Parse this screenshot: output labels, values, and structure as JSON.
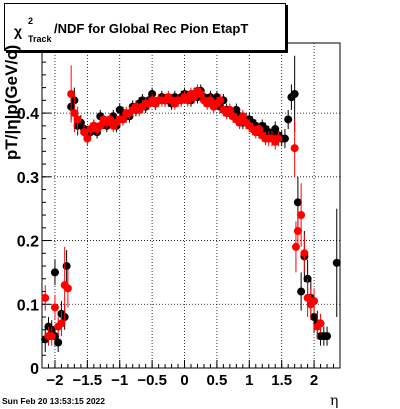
{
  "chart_data": {
    "type": "scatter",
    "title": {
      "prefix": "χ",
      "sup": "2",
      "sub": "Track",
      "rest": "/NDF for Global Rec Pion EtapT"
    },
    "xlabel": "η",
    "ylabel": "pT/|η|p(GeV/c)",
    "xlim": [
      -2.2,
      2.4
    ],
    "ylim": [
      0,
      0.51
    ],
    "xticks": [
      -2,
      -1.5,
      -1,
      -0.5,
      0,
      0.5,
      1,
      1.5,
      2
    ],
    "xtick_labels": [
      "−2",
      "−1.5",
      "−1",
      "−0.5",
      "0",
      "0.5",
      "1",
      "1.5",
      "2"
    ],
    "yticks": [
      0,
      0.1,
      0.2,
      0.3,
      0.4
    ],
    "ytick_labels": [
      "0",
      "0.1",
      "0.2",
      "0.3",
      "0.4"
    ],
    "grid": true,
    "series": [
      {
        "color": "#000000",
        "points": [
          [
            -2.15,
            0.045,
            0.02
          ],
          [
            -2.1,
            0.065,
            0.015
          ],
          [
            -2.05,
            0.06,
            0.015
          ],
          [
            -2.0,
            0.15,
            0.02
          ],
          [
            -2.0,
            0.05,
            0.015
          ],
          [
            -1.95,
            0.04,
            0.015
          ],
          [
            -1.9,
            0.085,
            0.02
          ],
          [
            -1.85,
            0.08,
            0.02
          ],
          [
            -1.82,
            0.16,
            0.025
          ],
          [
            -1.75,
            0.41,
            0.02
          ],
          [
            -1.7,
            0.42,
            0.02
          ],
          [
            -1.65,
            0.38,
            0.015
          ],
          [
            -1.6,
            0.385,
            0.012
          ],
          [
            -1.55,
            0.375,
            0.012
          ],
          [
            -1.5,
            0.37,
            0.01
          ],
          [
            -1.45,
            0.37,
            0.01
          ],
          [
            -1.4,
            0.38,
            0.01
          ],
          [
            -1.35,
            0.37,
            0.01
          ],
          [
            -1.3,
            0.395,
            0.01
          ],
          [
            -1.25,
            0.385,
            0.01
          ],
          [
            -1.2,
            0.38,
            0.01
          ],
          [
            -1.15,
            0.39,
            0.01
          ],
          [
            -1.1,
            0.395,
            0.01
          ],
          [
            -1.05,
            0.38,
            0.01
          ],
          [
            -1.0,
            0.405,
            0.01
          ],
          [
            -0.95,
            0.4,
            0.01
          ],
          [
            -0.9,
            0.395,
            0.01
          ],
          [
            -0.85,
            0.395,
            0.01
          ],
          [
            -0.8,
            0.41,
            0.01
          ],
          [
            -0.75,
            0.405,
            0.01
          ],
          [
            -0.7,
            0.415,
            0.01
          ],
          [
            -0.65,
            0.42,
            0.01
          ],
          [
            -0.6,
            0.41,
            0.01
          ],
          [
            -0.55,
            0.42,
            0.01
          ],
          [
            -0.5,
            0.43,
            0.01
          ],
          [
            -0.45,
            0.415,
            0.01
          ],
          [
            -0.4,
            0.42,
            0.01
          ],
          [
            -0.35,
            0.425,
            0.01
          ],
          [
            -0.3,
            0.42,
            0.01
          ],
          [
            -0.25,
            0.42,
            0.01
          ],
          [
            -0.2,
            0.415,
            0.01
          ],
          [
            -0.15,
            0.425,
            0.01
          ],
          [
            -0.1,
            0.42,
            0.01
          ],
          [
            -0.05,
            0.425,
            0.01
          ],
          [
            0.0,
            0.43,
            0.01
          ],
          [
            0.05,
            0.425,
            0.01
          ],
          [
            0.1,
            0.42,
            0.01
          ],
          [
            0.15,
            0.43,
            0.01
          ],
          [
            0.2,
            0.425,
            0.01
          ],
          [
            0.25,
            0.435,
            0.01
          ],
          [
            0.3,
            0.425,
            0.01
          ],
          [
            0.35,
            0.42,
            0.01
          ],
          [
            0.4,
            0.425,
            0.01
          ],
          [
            0.45,
            0.415,
            0.01
          ],
          [
            0.5,
            0.425,
            0.01
          ],
          [
            0.55,
            0.41,
            0.01
          ],
          [
            0.6,
            0.42,
            0.01
          ],
          [
            0.65,
            0.405,
            0.01
          ],
          [
            0.7,
            0.4,
            0.01
          ],
          [
            0.75,
            0.395,
            0.01
          ],
          [
            0.8,
            0.405,
            0.01
          ],
          [
            0.85,
            0.395,
            0.01
          ],
          [
            0.9,
            0.385,
            0.01
          ],
          [
            0.95,
            0.39,
            0.01
          ],
          [
            1.0,
            0.39,
            0.01
          ],
          [
            1.05,
            0.385,
            0.01
          ],
          [
            1.1,
            0.38,
            0.01
          ],
          [
            1.15,
            0.37,
            0.01
          ],
          [
            1.2,
            0.38,
            0.01
          ],
          [
            1.25,
            0.375,
            0.01
          ],
          [
            1.3,
            0.37,
            0.01
          ],
          [
            1.35,
            0.365,
            0.01
          ],
          [
            1.4,
            0.375,
            0.012
          ],
          [
            1.45,
            0.365,
            0.012
          ],
          [
            1.5,
            0.36,
            0.012
          ],
          [
            1.55,
            0.36,
            0.015
          ],
          [
            1.6,
            0.39,
            0.015
          ],
          [
            1.65,
            0.425,
            0.02
          ],
          [
            1.7,
            0.43,
            0.06
          ],
          [
            1.75,
            0.26,
            0.04
          ],
          [
            1.8,
            0.12,
            0.03
          ],
          [
            1.85,
            0.175,
            0.04
          ],
          [
            1.9,
            0.14,
            0.03
          ],
          [
            1.95,
            0.11,
            0.03
          ],
          [
            2.0,
            0.08,
            0.025
          ],
          [
            2.05,
            0.07,
            0.02
          ],
          [
            2.1,
            0.05,
            0.015
          ],
          [
            2.15,
            0.05,
            0.015
          ],
          [
            2.2,
            0.05,
            0.015
          ],
          [
            2.35,
            0.165,
            0.085
          ]
        ]
      },
      {
        "color": "#ff0000",
        "points": [
          [
            -2.15,
            0.11,
            0.02
          ],
          [
            -2.1,
            0.05,
            0.015
          ],
          [
            -2.05,
            0.05,
            0.015
          ],
          [
            -2.0,
            0.095,
            0.02
          ],
          [
            -1.95,
            0.065,
            0.015
          ],
          [
            -1.9,
            0.07,
            0.02
          ],
          [
            -1.85,
            0.13,
            0.06
          ],
          [
            -1.8,
            0.125,
            0.03
          ],
          [
            -1.75,
            0.43,
            0.045
          ],
          [
            -1.7,
            0.4,
            0.03
          ],
          [
            -1.65,
            0.39,
            0.02
          ],
          [
            -1.55,
            0.37,
            0.012
          ],
          [
            -1.5,
            0.36,
            0.01
          ],
          [
            -1.45,
            0.375,
            0.01
          ],
          [
            -1.4,
            0.38,
            0.01
          ],
          [
            -1.35,
            0.375,
            0.01
          ],
          [
            -1.3,
            0.38,
            0.01
          ],
          [
            -1.25,
            0.39,
            0.01
          ],
          [
            -1.2,
            0.385,
            0.01
          ],
          [
            -1.15,
            0.39,
            0.01
          ],
          [
            -1.1,
            0.38,
            0.01
          ],
          [
            -1.05,
            0.385,
            0.01
          ],
          [
            -1.0,
            0.39,
            0.01
          ],
          [
            -0.95,
            0.39,
            0.01
          ],
          [
            -0.9,
            0.4,
            0.01
          ],
          [
            -0.85,
            0.4,
            0.01
          ],
          [
            -0.8,
            0.405,
            0.01
          ],
          [
            -0.75,
            0.41,
            0.01
          ],
          [
            -0.7,
            0.405,
            0.01
          ],
          [
            -0.65,
            0.41,
            0.01
          ],
          [
            -0.6,
            0.415,
            0.01
          ],
          [
            -0.55,
            0.415,
            0.01
          ],
          [
            -0.5,
            0.42,
            0.01
          ],
          [
            -0.45,
            0.415,
            0.01
          ],
          [
            -0.4,
            0.42,
            0.01
          ],
          [
            -0.35,
            0.42,
            0.01
          ],
          [
            -0.3,
            0.42,
            0.01
          ],
          [
            -0.25,
            0.425,
            0.01
          ],
          [
            -0.2,
            0.42,
            0.01
          ],
          [
            -0.15,
            0.415,
            0.01
          ],
          [
            -0.1,
            0.42,
            0.01
          ],
          [
            -0.05,
            0.42,
            0.01
          ],
          [
            0.0,
            0.425,
            0.01
          ],
          [
            0.05,
            0.42,
            0.01
          ],
          [
            0.1,
            0.43,
            0.01
          ],
          [
            0.15,
            0.425,
            0.01
          ],
          [
            0.2,
            0.435,
            0.01
          ],
          [
            0.25,
            0.43,
            0.01
          ],
          [
            0.3,
            0.42,
            0.01
          ],
          [
            0.35,
            0.415,
            0.01
          ],
          [
            0.4,
            0.42,
            0.01
          ],
          [
            0.45,
            0.41,
            0.01
          ],
          [
            0.5,
            0.415,
            0.01
          ],
          [
            0.55,
            0.42,
            0.01
          ],
          [
            0.6,
            0.405,
            0.01
          ],
          [
            0.65,
            0.4,
            0.01
          ],
          [
            0.7,
            0.405,
            0.01
          ],
          [
            0.75,
            0.395,
            0.01
          ],
          [
            0.8,
            0.39,
            0.01
          ],
          [
            0.85,
            0.385,
            0.01
          ],
          [
            0.9,
            0.395,
            0.01
          ],
          [
            0.95,
            0.385,
            0.01
          ],
          [
            1.0,
            0.38,
            0.01
          ],
          [
            1.05,
            0.375,
            0.01
          ],
          [
            1.1,
            0.37,
            0.01
          ],
          [
            1.15,
            0.375,
            0.01
          ],
          [
            1.2,
            0.365,
            0.01
          ],
          [
            1.25,
            0.36,
            0.01
          ],
          [
            1.3,
            0.36,
            0.012
          ],
          [
            1.35,
            0.36,
            0.012
          ],
          [
            1.4,
            0.355,
            0.012
          ],
          [
            1.45,
            0.36,
            0.012
          ],
          [
            1.7,
            0.345,
            0.045
          ],
          [
            1.72,
            0.19,
            0.04
          ],
          [
            1.75,
            0.215,
            0.03
          ],
          [
            1.8,
            0.24,
            0.05
          ],
          [
            1.85,
            0.18,
            0.03
          ],
          [
            1.9,
            0.11,
            0.03
          ],
          [
            1.95,
            0.1,
            0.025
          ],
          [
            2.0,
            0.105,
            0.02
          ],
          [
            2.05,
            0.065,
            0.02
          ],
          [
            2.1,
            0.07,
            0.015
          ]
        ]
      }
    ]
  },
  "footer": {
    "datestamp": "Sun Feb 20 13:53:15 2022"
  }
}
